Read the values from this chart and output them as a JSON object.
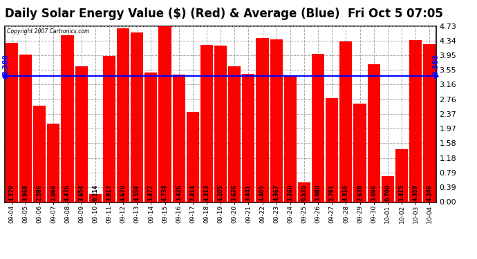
{
  "title": "Daily Solar Energy Value ($) (Red) & Average (Blue)  Fri Oct 5 07:05",
  "copyright": "Copyright 2007 Cartronics.com",
  "categories": [
    "09-04",
    "09-05",
    "09-06",
    "09-07",
    "09-08",
    "09-09",
    "09-10",
    "09-11",
    "09-12",
    "09-13",
    "09-14",
    "09-15",
    "09-16",
    "09-17",
    "09-18",
    "09-19",
    "09-20",
    "09-21",
    "09-22",
    "09-23",
    "09-24",
    "09-25",
    "09-26",
    "09-27",
    "09-28",
    "09-29",
    "09-30",
    "10-01",
    "10-02",
    "10-03",
    "10-04"
  ],
  "values": [
    4.279,
    3.968,
    2.586,
    2.099,
    4.476,
    3.654,
    0.214,
    3.917,
    4.67,
    4.559,
    3.477,
    4.734,
    3.426,
    2.414,
    4.213,
    4.205,
    3.636,
    3.441,
    4.405,
    4.367,
    3.36,
    0.535,
    3.98,
    2.791,
    4.316,
    2.638,
    3.696,
    0.7,
    1.415,
    4.359,
    4.246
  ],
  "average": 3.38,
  "bar_color": "#ff0000",
  "avg_line_color": "#0000ff",
  "outer_bg_color": "#ffffff",
  "plot_bg_color": "#ffffff",
  "title_color": "#000000",
  "ylim": [
    0.0,
    4.73
  ],
  "yticks": [
    0.0,
    0.39,
    0.79,
    1.18,
    1.58,
    1.97,
    2.37,
    2.76,
    3.16,
    3.55,
    3.95,
    4.34,
    4.73
  ],
  "avg_label": "3.380",
  "title_fontsize": 12,
  "label_fontsize": 5.5,
  "xtick_fontsize": 6.5,
  "ytick_fontsize": 8
}
